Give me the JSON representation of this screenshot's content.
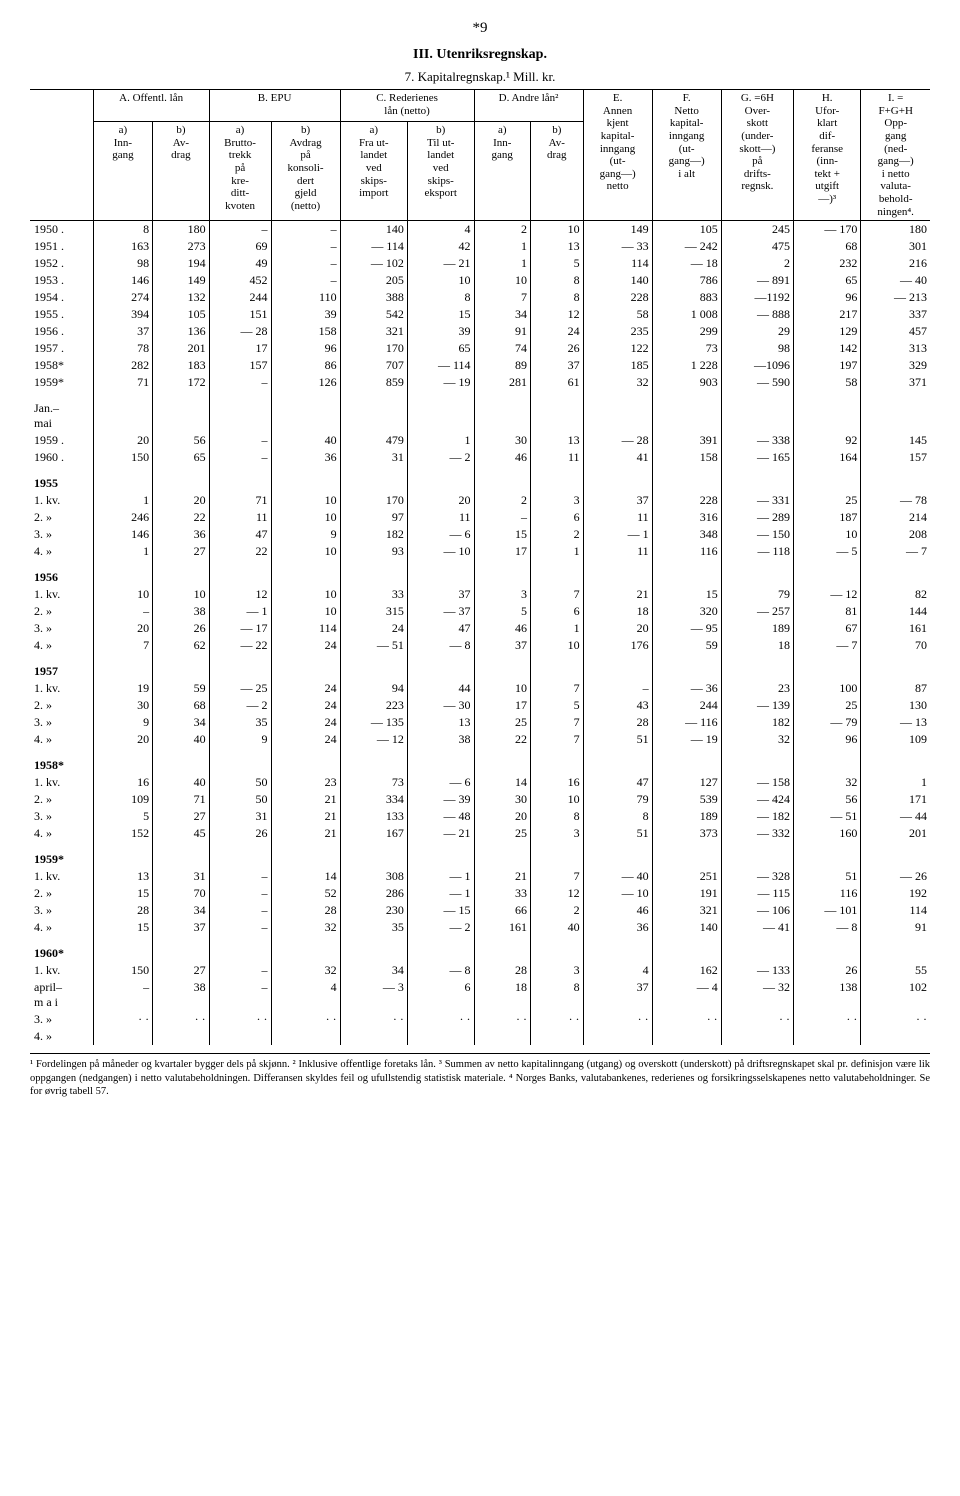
{
  "page_number": "*9",
  "section_title": "III. Utenriksregnskap.",
  "table_title": "7. Kapitalregnskap.¹ Mill. kr.",
  "headers": {
    "A": "A. Offentl. lån",
    "Aa": "a)\nInn-\ngang",
    "Ab": "b)\nAv-\ndrag",
    "B": "B. EPU",
    "Ba": "a)\nBrutto-\ntrekk\npå\nkre-\nditt-\nkvoten",
    "Bb": "b)\nAvdrag\npå\nkonsoli-\ndert\ngjeld\n(netto)",
    "C": "C. Rederienes\nlån (netto)",
    "Ca": "a)\nFra ut-\nlandet\nved\nskips-\nimport",
    "Cb": "b)\nTil ut-\nlandet\nved\nskips-\neksport",
    "D": "D. Andre lån²",
    "Da": "a)\nInn-\ngang",
    "Db": "b)\nAv-\ndrag",
    "E": "E.\nAnnen\nkjent\nkapital-\ninngang\n(ut-\ngang—)\nnetto",
    "F": "F.\nNetto\nkapital-\ninngang\n(ut-\ngang—)\ni alt",
    "G": "G. =6H\nOver-\nskott\n(under-\nskott—)\npå\ndrifts-\nregnsk.",
    "H": "H.\nUfor-\nklart\ndif-\nferanse\n(inn-\ntekt +\nutgift\n—)³",
    "I": "I. =\nF+G+H\nOpp-\ngang\n(ned-\ngang—)\ni netto\nvaluta-\nbehold-\nningen⁴."
  },
  "rows": [
    {
      "label": "1950 .",
      "v": [
        "8",
        "180",
        "–",
        "–",
        "140",
        "4",
        "2",
        "10",
        "149",
        "105",
        "245",
        "— 170",
        "180"
      ]
    },
    {
      "label": "1951 .",
      "v": [
        "163",
        "273",
        "69",
        "–",
        "— 114",
        "42",
        "1",
        "13",
        "— 33",
        "— 242",
        "475",
        "68",
        "301"
      ]
    },
    {
      "label": "1952 .",
      "v": [
        "98",
        "194",
        "49",
        "–",
        "— 102",
        "— 21",
        "1",
        "5",
        "114",
        "— 18",
        "2",
        "232",
        "216"
      ]
    },
    {
      "label": "1953 .",
      "v": [
        "146",
        "149",
        "452",
        "–",
        "205",
        "10",
        "10",
        "8",
        "140",
        "786",
        "— 891",
        "65",
        "— 40"
      ]
    },
    {
      "label": "1954 .",
      "v": [
        "274",
        "132",
        "244",
        "110",
        "388",
        "8",
        "7",
        "8",
        "228",
        "883",
        "—1192",
        "96",
        "— 213"
      ]
    },
    {
      "label": "1955 .",
      "v": [
        "394",
        "105",
        "151",
        "39",
        "542",
        "15",
        "34",
        "12",
        "58",
        "1 008",
        "— 888",
        "217",
        "337"
      ]
    },
    {
      "label": "1956 .",
      "v": [
        "37",
        "136",
        "— 28",
        "158",
        "321",
        "39",
        "91",
        "24",
        "235",
        "299",
        "29",
        "129",
        "457"
      ]
    },
    {
      "label": "1957 .",
      "v": [
        "78",
        "201",
        "17",
        "96",
        "170",
        "65",
        "74",
        "26",
        "122",
        "73",
        "98",
        "142",
        "313"
      ]
    },
    {
      "label": "1958*",
      "v": [
        "282",
        "183",
        "157",
        "86",
        "707",
        "— 114",
        "89",
        "37",
        "185",
        "1 228",
        "—1096",
        "197",
        "329"
      ]
    },
    {
      "label": "1959*",
      "v": [
        "71",
        "172",
        "–",
        "126",
        "859",
        "— 19",
        "281",
        "61",
        "32",
        "903",
        "— 590",
        "58",
        "371"
      ]
    },
    {
      "label": "Jan.–\nmai",
      "break": true,
      "v": [
        "",
        "",
        "",
        "",
        "",
        "",
        "",
        "",
        "",
        "",
        "",
        "",
        ""
      ]
    },
    {
      "label": "1959 .",
      "v": [
        "20",
        "56",
        "–",
        "40",
        "479",
        "1",
        "30",
        "13",
        "— 28",
        "391",
        "— 338",
        "92",
        "145"
      ]
    },
    {
      "label": "1960 .",
      "v": [
        "150",
        "65",
        "–",
        "36",
        "31",
        "— 2",
        "46",
        "11",
        "41",
        "158",
        "— 165",
        "164",
        "157"
      ]
    },
    {
      "label": "1955",
      "break": true,
      "bold": true,
      "v": [
        "",
        "",
        "",
        "",
        "",
        "",
        "",
        "",
        "",
        "",
        "",
        "",
        ""
      ]
    },
    {
      "label": "1. kv.",
      "v": [
        "1",
        "20",
        "71",
        "10",
        "170",
        "20",
        "2",
        "3",
        "37",
        "228",
        "— 331",
        "25",
        "— 78"
      ]
    },
    {
      "label": "2.  »",
      "v": [
        "246",
        "22",
        "11",
        "10",
        "97",
        "11",
        "–",
        "6",
        "11",
        "316",
        "— 289",
        "187",
        "214"
      ]
    },
    {
      "label": "3.  »",
      "v": [
        "146",
        "36",
        "47",
        "9",
        "182",
        "— 6",
        "15",
        "2",
        "— 1",
        "348",
        "— 150",
        "10",
        "208"
      ]
    },
    {
      "label": "4.  »",
      "v": [
        "1",
        "27",
        "22",
        "10",
        "93",
        "— 10",
        "17",
        "1",
        "11",
        "116",
        "— 118",
        "— 5",
        "— 7"
      ]
    },
    {
      "label": "1956",
      "break": true,
      "bold": true,
      "v": [
        "",
        "",
        "",
        "",
        "",
        "",
        "",
        "",
        "",
        "",
        "",
        "",
        ""
      ]
    },
    {
      "label": "1. kv.",
      "v": [
        "10",
        "10",
        "12",
        "10",
        "33",
        "37",
        "3",
        "7",
        "21",
        "15",
        "79",
        "— 12",
        "82"
      ]
    },
    {
      "label": "2.  »",
      "v": [
        "–",
        "38",
        "— 1",
        "10",
        "315",
        "— 37",
        "5",
        "6",
        "18",
        "320",
        "— 257",
        "81",
        "144"
      ]
    },
    {
      "label": "3.  »",
      "v": [
        "20",
        "26",
        "— 17",
        "114",
        "24",
        "47",
        "46",
        "1",
        "20",
        "— 95",
        "189",
        "67",
        "161"
      ]
    },
    {
      "label": "4.  »",
      "v": [
        "7",
        "62",
        "— 22",
        "24",
        "— 51",
        "— 8",
        "37",
        "10",
        "176",
        "59",
        "18",
        "— 7",
        "70"
      ]
    },
    {
      "label": "1957",
      "break": true,
      "bold": true,
      "v": [
        "",
        "",
        "",
        "",
        "",
        "",
        "",
        "",
        "",
        "",
        "",
        "",
        ""
      ]
    },
    {
      "label": "1. kv.",
      "v": [
        "19",
        "59",
        "— 25",
        "24",
        "94",
        "44",
        "10",
        "7",
        "–",
        "— 36",
        "23",
        "100",
        "87"
      ]
    },
    {
      "label": "2.  »",
      "v": [
        "30",
        "68",
        "— 2",
        "24",
        "223",
        "— 30",
        "17",
        "5",
        "43",
        "244",
        "— 139",
        "25",
        "130"
      ]
    },
    {
      "label": "3.  »",
      "v": [
        "9",
        "34",
        "35",
        "24",
        "— 135",
        "13",
        "25",
        "7",
        "28",
        "— 116",
        "182",
        "— 79",
        "— 13"
      ]
    },
    {
      "label": "4.  »",
      "v": [
        "20",
        "40",
        "9",
        "24",
        "— 12",
        "38",
        "22",
        "7",
        "51",
        "— 19",
        "32",
        "96",
        "109"
      ]
    },
    {
      "label": "1958*",
      "break": true,
      "bold": true,
      "v": [
        "",
        "",
        "",
        "",
        "",
        "",
        "",
        "",
        "",
        "",
        "",
        "",
        ""
      ]
    },
    {
      "label": "1. kv.",
      "v": [
        "16",
        "40",
        "50",
        "23",
        "73",
        "— 6",
        "14",
        "16",
        "47",
        "127",
        "— 158",
        "32",
        "1"
      ]
    },
    {
      "label": "2.  »",
      "v": [
        "109",
        "71",
        "50",
        "21",
        "334",
        "— 39",
        "30",
        "10",
        "79",
        "539",
        "— 424",
        "56",
        "171"
      ]
    },
    {
      "label": "3.  »",
      "v": [
        "5",
        "27",
        "31",
        "21",
        "133",
        "— 48",
        "20",
        "8",
        "8",
        "189",
        "— 182",
        "— 51",
        "— 44"
      ]
    },
    {
      "label": "4.  »",
      "v": [
        "152",
        "45",
        "26",
        "21",
        "167",
        "— 21",
        "25",
        "3",
        "51",
        "373",
        "— 332",
        "160",
        "201"
      ]
    },
    {
      "label": "1959*",
      "break": true,
      "bold": true,
      "v": [
        "",
        "",
        "",
        "",
        "",
        "",
        "",
        "",
        "",
        "",
        "",
        "",
        ""
      ]
    },
    {
      "label": "1. kv.",
      "v": [
        "13",
        "31",
        "–",
        "14",
        "308",
        "— 1",
        "21",
        "7",
        "— 40",
        "251",
        "— 328",
        "51",
        "— 26"
      ]
    },
    {
      "label": "2.  »",
      "v": [
        "15",
        "70",
        "–",
        "52",
        "286",
        "— 1",
        "33",
        "12",
        "— 10",
        "191",
        "— 115",
        "116",
        "192"
      ]
    },
    {
      "label": "3.  »",
      "v": [
        "28",
        "34",
        "–",
        "28",
        "230",
        "— 15",
        "66",
        "2",
        "46",
        "321",
        "— 106",
        "— 101",
        "114"
      ]
    },
    {
      "label": "4.  »",
      "v": [
        "15",
        "37",
        "–",
        "32",
        "35",
        "— 2",
        "161",
        "40",
        "36",
        "140",
        "— 41",
        "— 8",
        "91"
      ]
    },
    {
      "label": "1960*",
      "break": true,
      "bold": true,
      "v": [
        "",
        "",
        "",
        "",
        "",
        "",
        "",
        "",
        "",
        "",
        "",
        "",
        ""
      ]
    },
    {
      "label": "1. kv.",
      "v": [
        "150",
        "27",
        "–",
        "32",
        "34",
        "— 8",
        "28",
        "3",
        "4",
        "162",
        "— 133",
        "26",
        "55"
      ]
    },
    {
      "label": "april–\nm a i",
      "v": [
        "–",
        "38",
        "–",
        "4",
        "— 3",
        "6",
        "18",
        "8",
        "37",
        "— 4",
        "— 32",
        "138",
        "102"
      ]
    },
    {
      "label": "3.  »",
      "v": [
        "· ·",
        "· ·",
        "· ·",
        "· ·",
        "· ·",
        "· ·",
        "· ·",
        "· ·",
        "· ·",
        "· ·",
        "· ·",
        "· ·",
        "· ·"
      ]
    },
    {
      "label": "4.  »",
      "v": [
        "",
        "",
        "",
        "",
        "",
        "",
        "",
        "",
        "",
        "",
        "",
        "",
        ""
      ]
    }
  ],
  "footnote": "¹ Fordelingen på måneder og kvartaler bygger dels på skjønn. ² Inklusive offentlige foretaks lån. ³ Summen av netto kapitalinngang (utgang) og overskott (underskott) på driftsregnskapet skal pr. definisjon være lik oppgangen (nedgangen) i netto valutabeholdningen. Differansen skyldes feil og ufullstendig statistisk materiale. ⁴ Norges Banks, valutabankenes, rederienes og forsikringsselskapenes netto valutabeholdninger. Se for øvrig tabell 57."
}
